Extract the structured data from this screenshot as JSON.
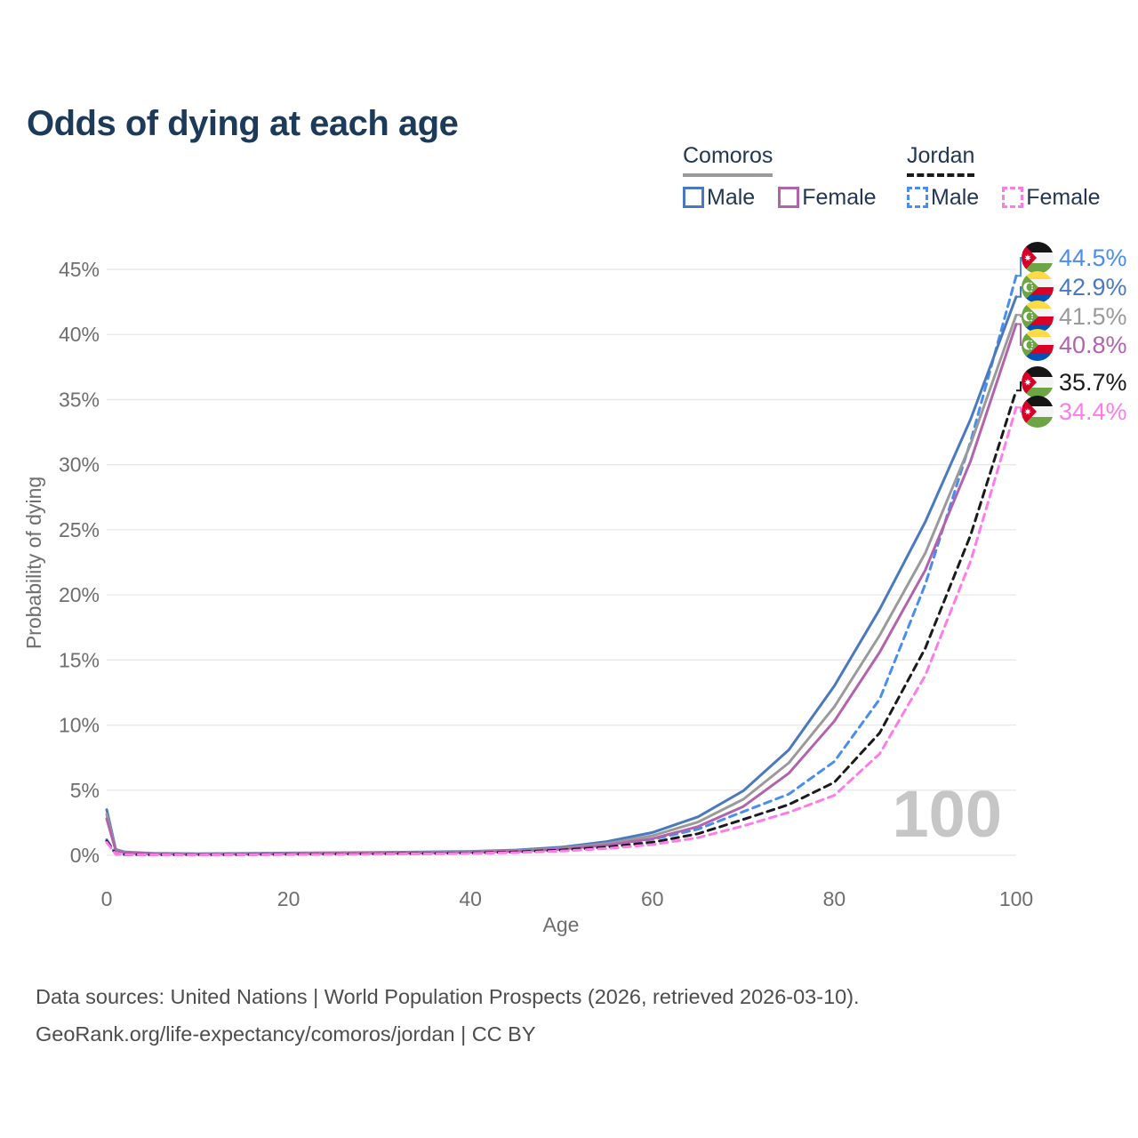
{
  "title": "Odds of dying at each age",
  "legend": {
    "groups": [
      {
        "country": "Comoros",
        "line_style": "solid",
        "line_color": "#9a9a9a",
        "items": [
          {
            "label": "Male",
            "color": "#4a79c0",
            "dashed": false
          },
          {
            "label": "Female",
            "color": "#b263ae",
            "dashed": false
          }
        ]
      },
      {
        "country": "Jordan",
        "line_style": "dashed",
        "line_color": "#1a1a1a",
        "items": [
          {
            "label": "Male",
            "color": "#4a8df0",
            "dashed": true
          },
          {
            "label": "Female",
            "color": "#ff7ce8",
            "dashed": true
          }
        ]
      }
    ]
  },
  "chart_data": {
    "type": "line",
    "title": "Odds of dying at each age",
    "xlabel": "Age",
    "ylabel": "Probability of dying",
    "x_ticks": [
      0,
      20,
      40,
      60,
      80,
      100
    ],
    "y_ticks_percent": [
      0,
      5,
      10,
      15,
      20,
      25,
      30,
      35,
      40,
      45
    ],
    "xlim": [
      0,
      100
    ],
    "ylim_percent": [
      0,
      45
    ],
    "grid": "horizontal-only",
    "age_watermark": "100",
    "ages": [
      0,
      1,
      2,
      5,
      10,
      15,
      20,
      25,
      30,
      35,
      40,
      45,
      50,
      55,
      60,
      65,
      70,
      75,
      80,
      85,
      90,
      95,
      100
    ],
    "series": [
      {
        "name": "Jordan Male",
        "country": "Jordan",
        "sex": "Male",
        "color": "#4a8df0",
        "dashed": true,
        "flag": "jordan",
        "end_label": "44.5%",
        "end_value_percent": 44.5,
        "values_percent": [
          1.2,
          0.1,
          0.06,
          0.045,
          0.045,
          0.06,
          0.09,
          0.11,
          0.13,
          0.16,
          0.21,
          0.3,
          0.47,
          0.76,
          1.22,
          2.0,
          3.35,
          4.7,
          7.2,
          12.0,
          20.8,
          31.8,
          44.5
        ]
      },
      {
        "name": "Comoros Male",
        "country": "Comoros",
        "sex": "Male",
        "color": "#4a79c0",
        "dashed": false,
        "flag": "comoros",
        "end_label": "42.9%",
        "end_value_percent": 42.9,
        "values_percent": [
          3.5,
          0.45,
          0.25,
          0.15,
          0.12,
          0.14,
          0.18,
          0.2,
          0.22,
          0.25,
          0.3,
          0.4,
          0.62,
          1.05,
          1.75,
          2.95,
          4.95,
          8.1,
          13.0,
          18.9,
          25.6,
          33.5,
          42.9
        ]
      },
      {
        "name": "Comoros Both sexes",
        "country": "Comoros",
        "sex": "Both",
        "color": "#9a9a9a",
        "dashed": false,
        "flag": "comoros",
        "end_label": "41.5%",
        "end_value_percent": 41.5,
        "values_percent": [
          3.15,
          0.4,
          0.22,
          0.13,
          0.1,
          0.12,
          0.15,
          0.17,
          0.19,
          0.22,
          0.27,
          0.35,
          0.54,
          0.9,
          1.5,
          2.55,
          4.3,
          7.1,
          11.4,
          16.9,
          23.2,
          31.6,
          41.5
        ]
      },
      {
        "name": "Comoros Female",
        "country": "Comoros",
        "sex": "Female",
        "color": "#b263ae",
        "dashed": false,
        "flag": "comoros",
        "end_label": "40.8%",
        "end_value_percent": 40.8,
        "values_percent": [
          2.8,
          0.36,
          0.2,
          0.12,
          0.09,
          0.1,
          0.12,
          0.14,
          0.16,
          0.19,
          0.24,
          0.31,
          0.47,
          0.78,
          1.28,
          2.2,
          3.75,
          6.3,
          10.3,
          15.6,
          21.9,
          30.3,
          40.8
        ]
      },
      {
        "name": "Jordan Both sexes",
        "country": "Jordan",
        "sex": "Both",
        "color": "#1a1a1a",
        "dashed": true,
        "flag": "jordan",
        "end_label": "35.7%",
        "end_value_percent": 35.7,
        "values_percent": [
          1.1,
          0.09,
          0.055,
          0.04,
          0.04,
          0.05,
          0.07,
          0.09,
          0.11,
          0.13,
          0.17,
          0.25,
          0.4,
          0.63,
          1.0,
          1.65,
          2.75,
          3.9,
          5.6,
          9.4,
          15.9,
          24.6,
          35.7
        ]
      },
      {
        "name": "Jordan Female",
        "country": "Jordan",
        "sex": "Female",
        "color": "#ff7ce8",
        "dashed": true,
        "flag": "jordan",
        "end_label": "34.4%",
        "end_value_percent": 34.4,
        "values_percent": [
          1.0,
          0.08,
          0.05,
          0.035,
          0.03,
          0.04,
          0.055,
          0.07,
          0.09,
          0.11,
          0.14,
          0.2,
          0.32,
          0.52,
          0.82,
          1.35,
          2.25,
          3.3,
          4.6,
          7.8,
          13.8,
          22.6,
          34.4
        ]
      }
    ]
  },
  "footer": {
    "line1": "Data sources: United Nations | World Population Prospects (2026, retrieved 2026-03-10).",
    "line2": "GeoRank.org/life-expectancy/comoros/jordan | CC BY"
  },
  "colors": {
    "title_text": "#1c3a5a",
    "axis_text": "#6e6e6e",
    "gridline": "#e8e8e8",
    "watermark": "#c6c6c6",
    "footer_text": "#4d4d4d",
    "legend_text": "#233754"
  }
}
